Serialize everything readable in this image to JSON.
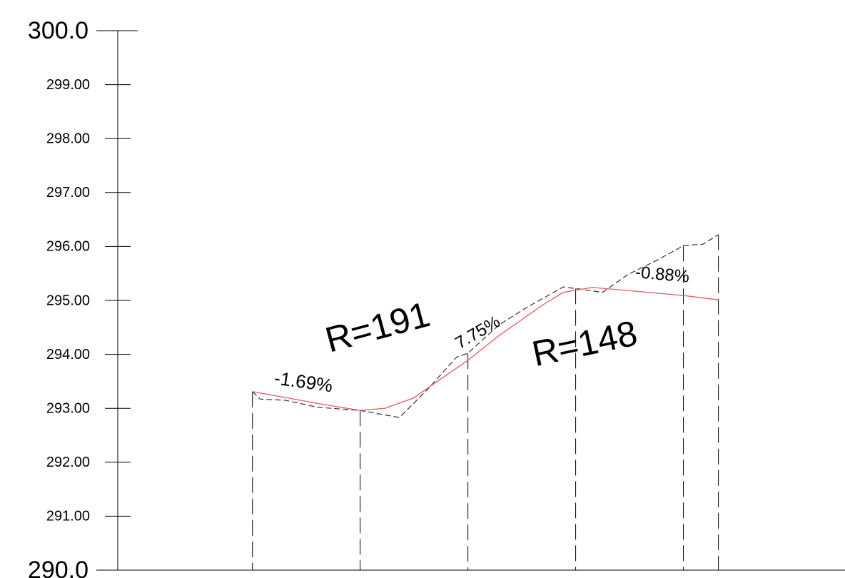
{
  "chart_data": {
    "type": "line",
    "ylim": [
      290,
      300
    ],
    "yticks": [
      {
        "value": 290,
        "label": "290.0"
      },
      {
        "value": 291,
        "label": "291.00"
      },
      {
        "value": 292,
        "label": "292.00"
      },
      {
        "value": 293,
        "label": "293.00"
      },
      {
        "value": 294,
        "label": "294.00"
      },
      {
        "value": 295,
        "label": "295.00"
      },
      {
        "value": 296,
        "label": "296.00"
      },
      {
        "value": 297,
        "label": "297.00"
      },
      {
        "value": 298,
        "label": "298.00"
      },
      {
        "value": 299,
        "label": "299.00"
      },
      {
        "value": 300,
        "label": "300.0"
      }
    ],
    "xlim": [
      -25,
      110
    ],
    "stations": [
      0,
      20,
      40,
      60,
      80,
      86.5
    ],
    "series": [
      {
        "color": "#333333",
        "dashed": true,
        "x": [
          0,
          1.46,
          6.09,
          12.05,
          20,
          23.3,
          27.3,
          29.3,
          32.6,
          37.9,
          40,
          45.8,
          51.1,
          57.7,
          60,
          65.0,
          69.7,
          75.0,
          80.1,
          83.6,
          86.5
        ],
        "values": [
          293.31,
          293.17,
          293.15,
          293.02,
          292.96,
          292.9,
          292.83,
          293.03,
          293.36,
          293.95,
          294.02,
          294.55,
          294.88,
          295.25,
          295.22,
          295.15,
          295.48,
          295.74,
          296.02,
          296.04,
          296.22
        ]
      },
      {
        "color": "#e8636b",
        "dashed": false,
        "x": [
          0,
          12.7,
          20,
          24.6,
          29.9,
          35.2,
          40,
          45.8,
          53.8,
          57.7,
          63.1,
          72.3,
          80.1,
          86.5
        ],
        "values": [
          293.31,
          293.08,
          292.96,
          293.0,
          293.19,
          293.56,
          293.89,
          294.35,
          294.91,
          295.15,
          295.24,
          295.16,
          295.09,
          295.01
        ]
      }
    ],
    "annotations": [
      "-1.69%",
      "R=191",
      "7.75%",
      "R=148",
      "-0.88%"
    ]
  }
}
